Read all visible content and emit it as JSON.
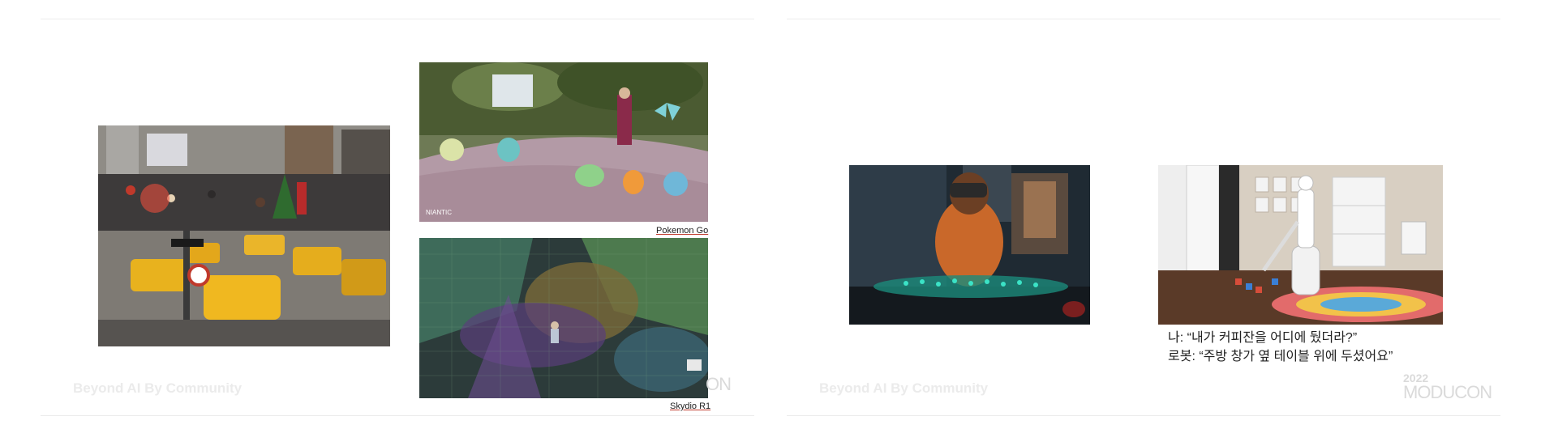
{
  "slides": [
    {
      "footer_text": "Beyond AI By Community",
      "logo": {
        "year": "",
        "name": "ON"
      },
      "images": [
        {
          "name": "times-square-crowd-photo",
          "caption": ""
        },
        {
          "name": "pokemon-go-ar-photo",
          "caption": "Pokemon Go"
        },
        {
          "name": "skydio-r1-drone-view-photo",
          "caption": "Skydio R1"
        }
      ]
    },
    {
      "footer_text": "Beyond AI By Community",
      "logo": {
        "year": "2022",
        "name": "MODUCON"
      },
      "images": [
        {
          "name": "vr-headset-hologram-photo",
          "caption": ""
        },
        {
          "name": "home-robot-living-room-photo",
          "caption": ""
        }
      ],
      "dialog": [
        "나: “내가 커피잔을 어디에 뒀더라?”",
        "로봇: “주방 창가 옆 테이블 위에 두셨어요”"
      ]
    }
  ]
}
